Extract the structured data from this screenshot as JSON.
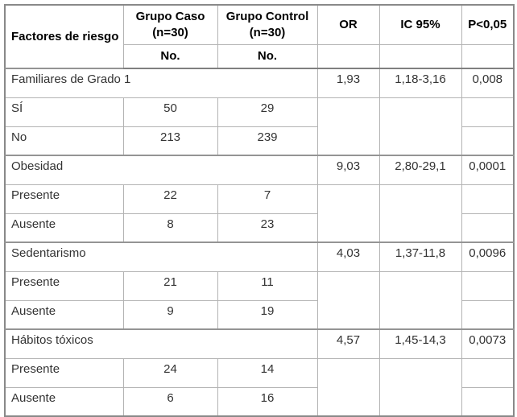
{
  "table": {
    "header": {
      "factores": "Factores de riesgo",
      "caso_line1": "Grupo Caso",
      "caso_line2": "(n=30)",
      "control_line1": "Grupo Control",
      "control_line2": "(n=30)",
      "no_caso": "No.",
      "no_control": "No.",
      "or": "OR",
      "ic": "IC 95%",
      "p": "P<0,05"
    },
    "groups": [
      {
        "factor": "Familiares de Grado 1",
        "or": "1,93",
        "ic": "1,18-3,16",
        "p": "0,008",
        "rows": [
          {
            "label": "SÍ",
            "caso": "50",
            "control": "29"
          },
          {
            "label": "No",
            "caso": "213",
            "control": "239"
          }
        ]
      },
      {
        "factor": "Obesidad",
        "or": "9,03",
        "ic": "2,80-29,1",
        "p": "0,0001",
        "rows": [
          {
            "label": "Presente",
            "caso": "22",
            "control": "7"
          },
          {
            "label": "Ausente",
            "caso": "8",
            "control": "23"
          }
        ]
      },
      {
        "factor": "Sedentarismo",
        "or": "4,03",
        "ic": "1,37-11,8",
        "p": "0,0096",
        "rows": [
          {
            "label": "Presente",
            "caso": "21",
            "control": "11"
          },
          {
            "label": "Ausente",
            "caso": "9",
            "control": "19"
          }
        ]
      },
      {
        "factor": "Hábitos tóxicos",
        "or": "4,57",
        "ic": "1,45-14,3",
        "p": "0,0073",
        "rows": [
          {
            "label": "Presente",
            "caso": "24",
            "control": "14"
          },
          {
            "label": "Ausente",
            "caso": "6",
            "control": "16"
          }
        ]
      }
    ],
    "colors": {
      "border_inner": "#b3b3b3",
      "border_strong": "#7f7f7f",
      "header_text": "#000000",
      "body_text": "#333333"
    }
  }
}
